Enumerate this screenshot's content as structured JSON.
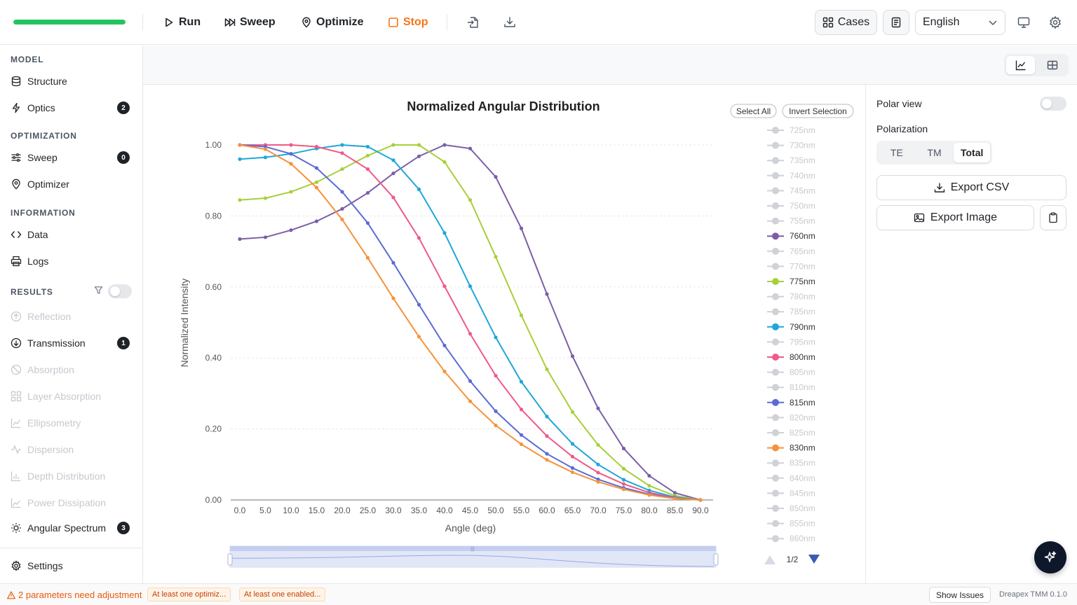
{
  "toolbar": {
    "progress": 1.0,
    "run_label": "Run",
    "sweep_label": "Sweep",
    "optimize_label": "Optimize",
    "stop_label": "Stop",
    "cases_label": "Cases",
    "language": "English"
  },
  "sidebar": {
    "sections": {
      "model": "MODEL",
      "optimization": "OPTIMIZATION",
      "information": "INFORMATION",
      "results": "RESULTS"
    },
    "items": {
      "structure": "Structure",
      "optics": "Optics",
      "optics_badge": "2",
      "sweep": "Sweep",
      "sweep_badge": "0",
      "optimizer": "Optimizer",
      "data": "Data",
      "logs": "Logs",
      "reflection": "Reflection",
      "transmission": "Transmission",
      "transmission_badge": "1",
      "absorption": "Absorption",
      "layer_absorption": "Layer Absorption",
      "ellipsometry": "Ellipsometry",
      "dispersion": "Dispersion",
      "depth_distribution": "Depth Distribution",
      "power_dissipation": "Power Dissipation",
      "angular_spectrum": "Angular Spectrum",
      "angular_spectrum_badge": "3",
      "settings": "Settings"
    }
  },
  "right_panel": {
    "polar_view": "Polar view",
    "polarization": "Polarization",
    "pol_options": [
      "TE",
      "TM",
      "Total"
    ],
    "pol_selected": "Total",
    "export_csv": "Export CSV",
    "export_image": "Export Image"
  },
  "chart_controls": {
    "select_all": "Select All",
    "invert_selection": "Invert Selection",
    "page": "1/2"
  },
  "chart_data": {
    "type": "line",
    "title": "Normalized Angular Distribution",
    "xlabel": "Angle (deg)",
    "ylabel": "Normalized Intensity",
    "xlim": [
      0,
      90
    ],
    "ylim": [
      0,
      1
    ],
    "x": [
      0,
      5,
      10,
      15,
      20,
      25,
      30,
      35,
      40,
      45,
      50,
      55,
      60,
      65,
      70,
      75,
      80,
      85,
      90
    ],
    "x_tick_labels": [
      "0.0",
      "5.0",
      "10.0",
      "15.0",
      "20.0",
      "25.0",
      "30.0",
      "35.0",
      "40.0",
      "45.0",
      "50.0",
      "55.0",
      "60.0",
      "65.0",
      "70.0",
      "75.0",
      "80.0",
      "85.0",
      "90.0"
    ],
    "y_tick_labels": [
      "0.00",
      "0.20",
      "0.40",
      "0.60",
      "0.80",
      "1.00"
    ],
    "grid": true,
    "legend_position": "right",
    "legend": [
      {
        "name": "725nm",
        "active": false
      },
      {
        "name": "730nm",
        "active": false
      },
      {
        "name": "735nm",
        "active": false
      },
      {
        "name": "740nm",
        "active": false
      },
      {
        "name": "745nm",
        "active": false
      },
      {
        "name": "750nm",
        "active": false
      },
      {
        "name": "755nm",
        "active": false
      },
      {
        "name": "760nm",
        "active": true,
        "color": "#7b5ea7"
      },
      {
        "name": "765nm",
        "active": false
      },
      {
        "name": "770nm",
        "active": false
      },
      {
        "name": "775nm",
        "active": true,
        "color": "#a8cf3a"
      },
      {
        "name": "780nm",
        "active": false
      },
      {
        "name": "785nm",
        "active": false
      },
      {
        "name": "790nm",
        "active": true,
        "color": "#1ea7d8"
      },
      {
        "name": "795nm",
        "active": false
      },
      {
        "name": "800nm",
        "active": true,
        "color": "#ef5a88"
      },
      {
        "name": "805nm",
        "active": false
      },
      {
        "name": "810nm",
        "active": false
      },
      {
        "name": "815nm",
        "active": true,
        "color": "#5b6bd6"
      },
      {
        "name": "820nm",
        "active": false
      },
      {
        "name": "825nm",
        "active": false
      },
      {
        "name": "830nm",
        "active": true,
        "color": "#f7923a"
      },
      {
        "name": "835nm",
        "active": false
      },
      {
        "name": "840nm",
        "active": false
      },
      {
        "name": "845nm",
        "active": false
      },
      {
        "name": "850nm",
        "active": false
      },
      {
        "name": "855nm",
        "active": false
      },
      {
        "name": "860nm",
        "active": false
      }
    ],
    "series": [
      {
        "name": "760nm",
        "color": "#7b5ea7",
        "values": [
          0.735,
          0.74,
          0.76,
          0.785,
          0.82,
          0.865,
          0.92,
          0.968,
          1.0,
          0.99,
          0.91,
          0.765,
          0.58,
          0.405,
          0.258,
          0.145,
          0.068,
          0.02,
          0.0
        ]
      },
      {
        "name": "775nm",
        "color": "#a8cf3a",
        "values": [
          0.845,
          0.85,
          0.868,
          0.895,
          0.932,
          0.97,
          1.0,
          1.0,
          0.952,
          0.845,
          0.685,
          0.52,
          0.368,
          0.248,
          0.155,
          0.088,
          0.04,
          0.012,
          0.0
        ]
      },
      {
        "name": "790nm",
        "color": "#1ea7d8",
        "values": [
          0.96,
          0.965,
          0.975,
          0.99,
          1.0,
          0.995,
          0.957,
          0.875,
          0.752,
          0.602,
          0.458,
          0.333,
          0.235,
          0.158,
          0.1,
          0.057,
          0.027,
          0.008,
          0.0
        ]
      },
      {
        "name": "800nm",
        "color": "#ef5a88",
        "values": [
          1.0,
          1.0,
          1.0,
          0.995,
          0.977,
          0.932,
          0.852,
          0.738,
          0.602,
          0.468,
          0.35,
          0.255,
          0.18,
          0.122,
          0.077,
          0.045,
          0.021,
          0.006,
          0.0
        ]
      },
      {
        "name": "815nm",
        "color": "#5b6bd6",
        "values": [
          1.0,
          0.995,
          0.975,
          0.935,
          0.868,
          0.78,
          0.668,
          0.55,
          0.435,
          0.335,
          0.25,
          0.183,
          0.13,
          0.09,
          0.058,
          0.034,
          0.016,
          0.005,
          0.0
        ]
      },
      {
        "name": "830nm",
        "color": "#f7923a",
        "values": [
          1.0,
          0.988,
          0.947,
          0.88,
          0.79,
          0.682,
          0.568,
          0.46,
          0.362,
          0.278,
          0.21,
          0.157,
          0.113,
          0.078,
          0.051,
          0.03,
          0.014,
          0.004,
          0.0
        ]
      }
    ]
  },
  "footer": {
    "warning": "2 parameters need adjustment",
    "chip1": "At least one optimiz...",
    "chip2": "At least one enabled...",
    "show_issues": "Show Issues",
    "version": "Dreapex TMM 0.1.0"
  }
}
